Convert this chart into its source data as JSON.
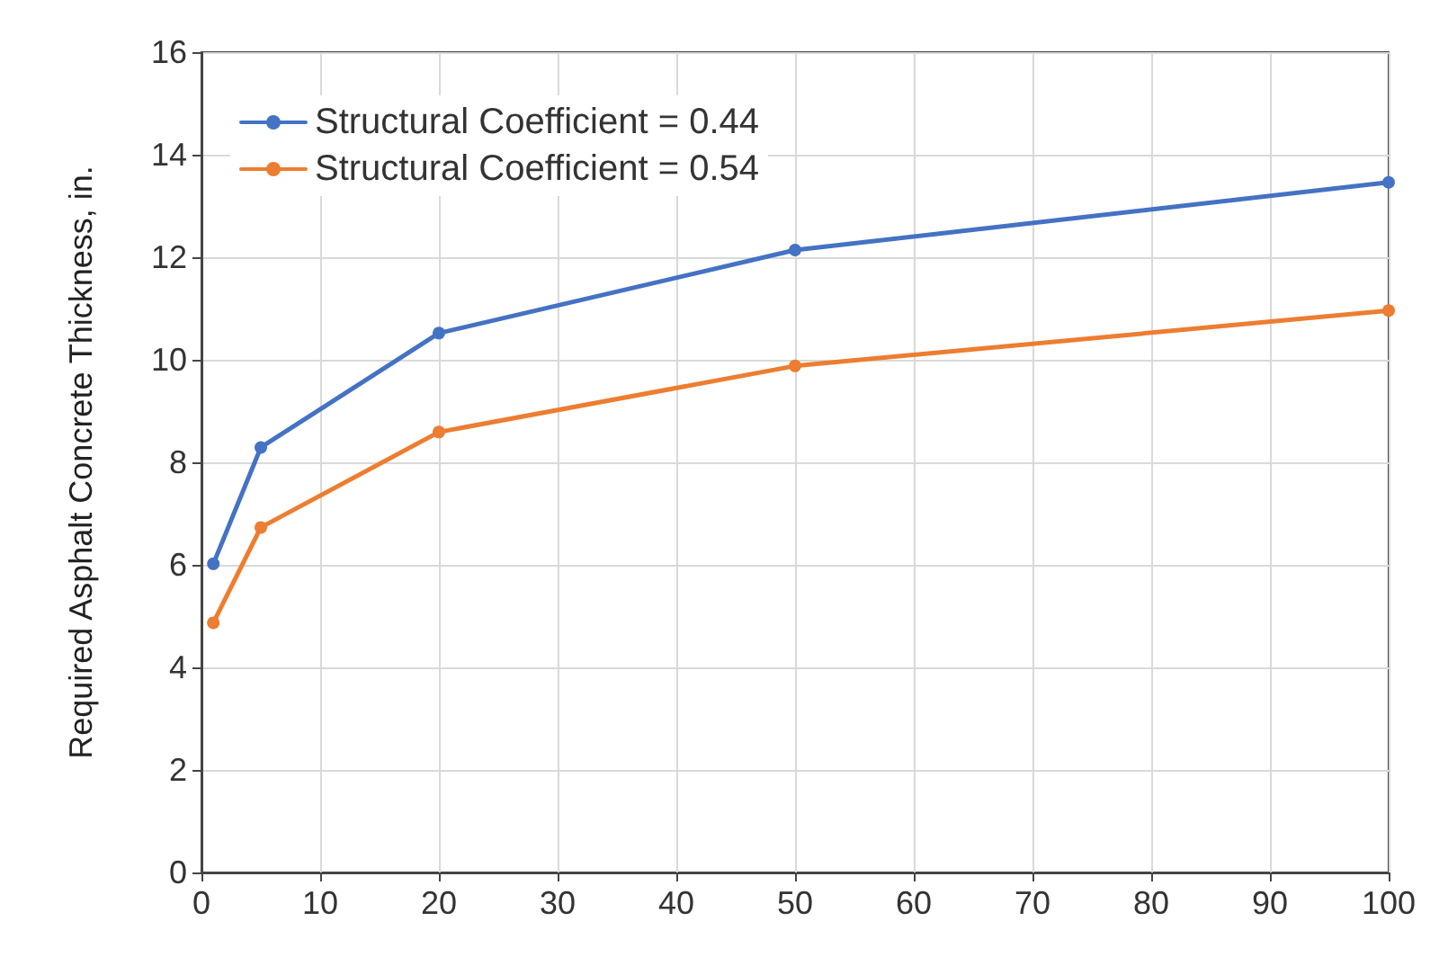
{
  "chart_data": {
    "type": "line",
    "ylabel": "Required Asphalt Concrete Thickness, in.",
    "x": [
      1,
      5,
      20,
      50,
      100
    ],
    "series": [
      {
        "name": "Structural Coefficient = 0.44",
        "color": "#4472c4",
        "values": [
          6.02,
          8.29,
          10.52,
          12.14,
          13.46
        ]
      },
      {
        "name": "Structural Coefficient = 0.54",
        "color": "#ed7d31",
        "values": [
          4.87,
          6.73,
          8.59,
          9.88,
          10.96
        ]
      }
    ],
    "xlim": [
      0,
      100
    ],
    "xticks": [
      0,
      10,
      20,
      30,
      40,
      50,
      60,
      70,
      80,
      90,
      100
    ],
    "ylim": [
      0,
      16
    ],
    "yticks": [
      0,
      2,
      4,
      6,
      8,
      10,
      12,
      14,
      16
    ],
    "grid": true,
    "legend": "top left",
    "marker": "circle",
    "line_style": "solid"
  }
}
